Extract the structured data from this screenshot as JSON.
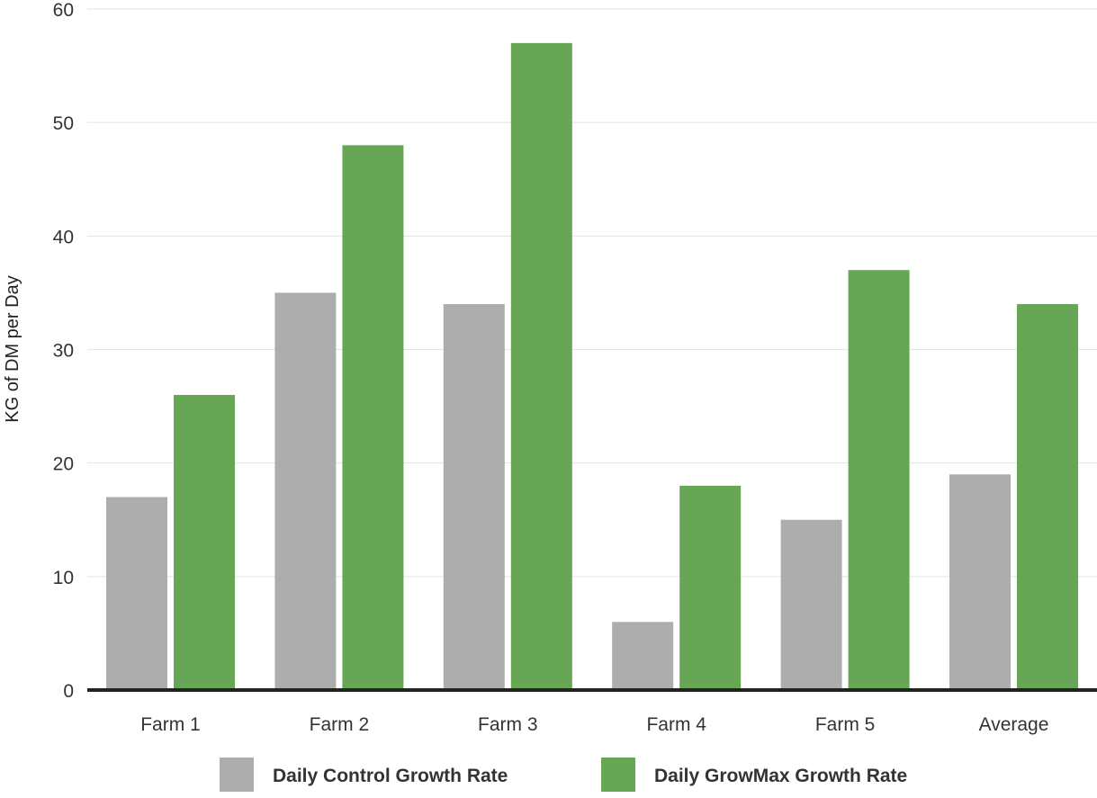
{
  "chart_data": {
    "type": "bar",
    "title": "",
    "xlabel": "",
    "ylabel": "KG of DM per Day",
    "ylim": [
      0,
      60
    ],
    "yticks": [
      0,
      10,
      20,
      30,
      40,
      50,
      60
    ],
    "categories": [
      "Farm 1",
      "Farm 2",
      "Farm 3",
      "Farm 4",
      "Farm 5",
      "Average"
    ],
    "series": [
      {
        "name": "Daily Control Growth Rate",
        "color": "#adadad",
        "values": [
          17,
          35,
          34,
          6,
          15,
          19
        ]
      },
      {
        "name": "Daily GrowMax Growth Rate",
        "color": "#66a655",
        "values": [
          26,
          48,
          57,
          18,
          37,
          34
        ]
      }
    ],
    "grid": true,
    "legend_position": "bottom"
  }
}
